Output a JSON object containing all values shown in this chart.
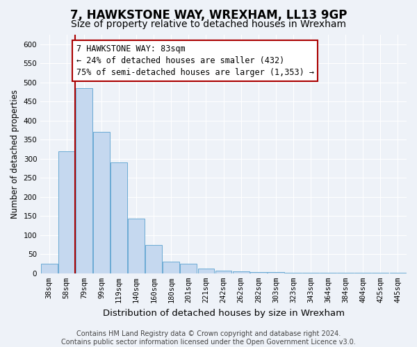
{
  "title": "7, HAWKSTONE WAY, WREXHAM, LL13 9GP",
  "subtitle": "Size of property relative to detached houses in Wrexham",
  "xlabel": "Distribution of detached houses by size in Wrexham",
  "ylabel": "Number of detached properties",
  "categories": [
    "38sqm",
    "58sqm",
    "79sqm",
    "99sqm",
    "119sqm",
    "140sqm",
    "160sqm",
    "180sqm",
    "201sqm",
    "221sqm",
    "242sqm",
    "262sqm",
    "282sqm",
    "303sqm",
    "323sqm",
    "343sqm",
    "364sqm",
    "384sqm",
    "404sqm",
    "425sqm",
    "445sqm"
  ],
  "values": [
    25,
    320,
    485,
    370,
    290,
    143,
    75,
    30,
    25,
    13,
    7,
    5,
    3,
    3,
    2,
    2,
    1,
    1,
    1,
    1,
    1
  ],
  "bar_color": "#c5d8ef",
  "bar_edge_color": "#6aaad4",
  "red_line_index": 2,
  "annotation_line1": "7 HAWKSTONE WAY: 83sqm",
  "annotation_line2": "← 24% of detached houses are smaller (432)",
  "annotation_line3": "75% of semi-detached houses are larger (1,353) →",
  "annotation_box_color": "#ffffff",
  "annotation_box_edge_color": "#aa0000",
  "ylim": [
    0,
    625
  ],
  "yticks": [
    0,
    50,
    100,
    150,
    200,
    250,
    300,
    350,
    400,
    450,
    500,
    550,
    600
  ],
  "footer_line1": "Contains HM Land Registry data © Crown copyright and database right 2024.",
  "footer_line2": "Contains public sector information licensed under the Open Government Licence v3.0.",
  "bg_color": "#eef2f8",
  "plot_bg_color": "#eef2f8",
  "grid_color": "#ffffff",
  "title_fontsize": 12,
  "subtitle_fontsize": 10,
  "xlabel_fontsize": 9.5,
  "ylabel_fontsize": 8.5,
  "tick_fontsize": 7.5,
  "annotation_fontsize": 8.5,
  "footer_fontsize": 7
}
